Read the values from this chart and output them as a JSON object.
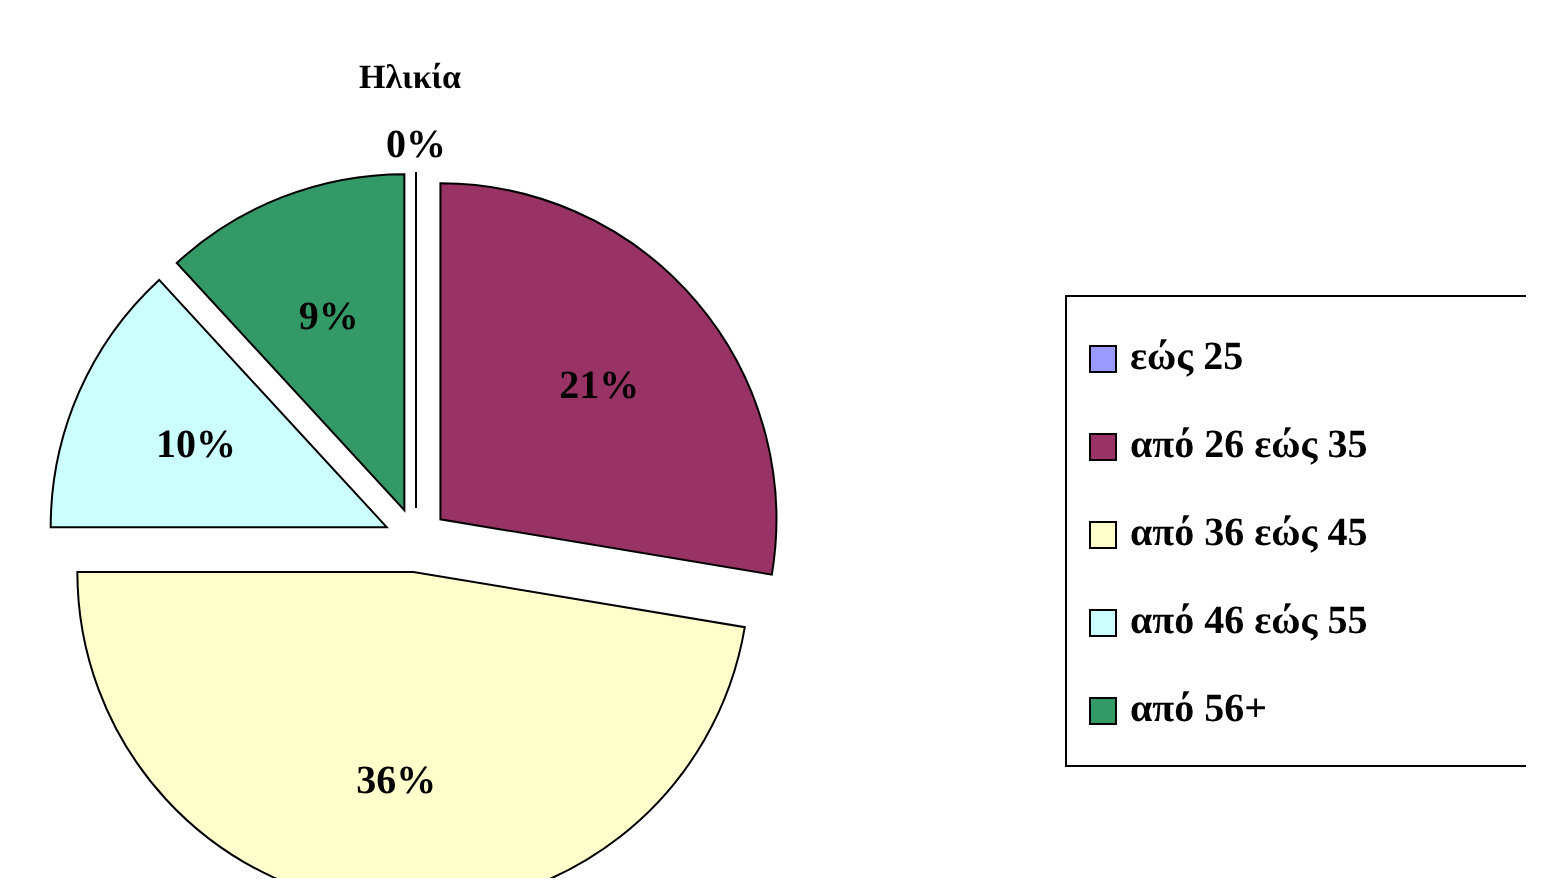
{
  "chart_data": {
    "type": "pie",
    "title": "Ηλικία",
    "categories": [
      "εώς 25",
      "από 26 εώς 35",
      "από 36 εώς 45",
      "από 46 εώς 55",
      "από 56+"
    ],
    "values": [
      0,
      21,
      36,
      10,
      9
    ],
    "colors": [
      "#9999ff",
      "#993366",
      "#ffffcc",
      "#ccffff",
      "#339966"
    ],
    "legend": "right",
    "value_labels": [
      "0%",
      "21%",
      "36%",
      "10%",
      "9%"
    ]
  }
}
